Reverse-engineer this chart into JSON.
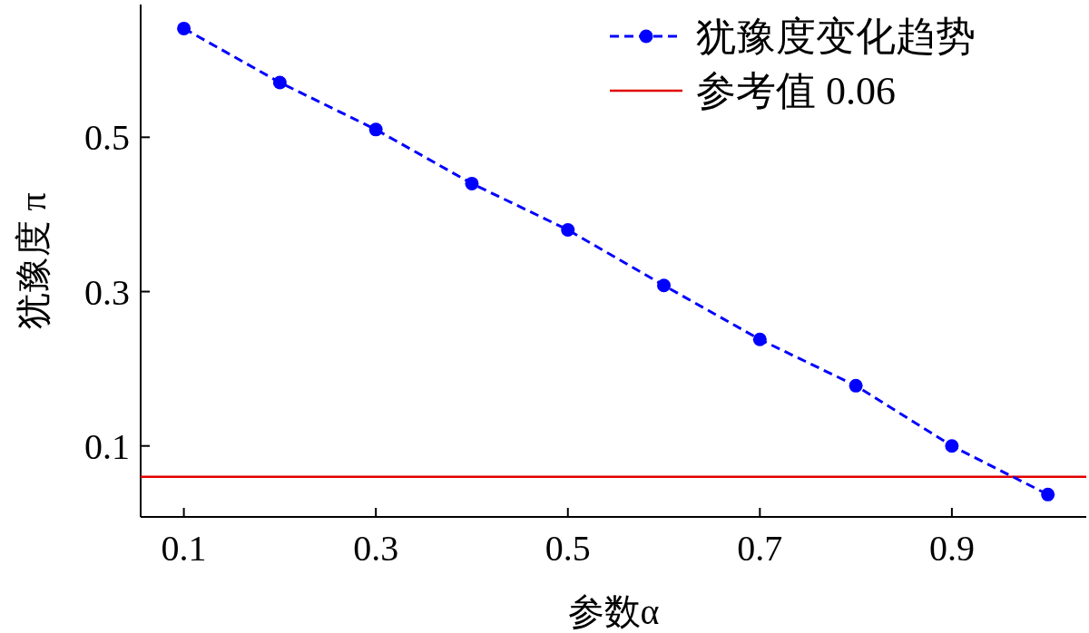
{
  "chart_data": {
    "type": "line",
    "xlabel": "参数α",
    "ylabel": "犹豫度 π",
    "x": [
      0.1,
      0.2,
      0.3,
      0.4,
      0.5,
      0.6,
      0.7,
      0.8,
      0.9,
      1.0
    ],
    "series": [
      {
        "name": "犹豫度变化趋势",
        "color": "#0000ff",
        "values": [
          0.641,
          0.571,
          0.51,
          0.44,
          0.38,
          0.308,
          0.238,
          0.178,
          0.1,
          0.037
        ]
      }
    ],
    "ref_lines": [
      {
        "axis": "y",
        "value": 0.06,
        "label": "参考值 0.06",
        "color": "#e00000",
        "line_style": "solid"
      }
    ],
    "xlim": [
      0.055,
      1.04
    ],
    "ylim": [
      0.008,
      0.672
    ],
    "xticks": [
      0.1,
      0.3,
      0.5,
      0.7,
      0.9
    ],
    "yticks": [
      0.1,
      0.3,
      0.5
    ],
    "marker": "circle",
    "line_style": "dashed",
    "legend": "top right",
    "grid": false
  }
}
